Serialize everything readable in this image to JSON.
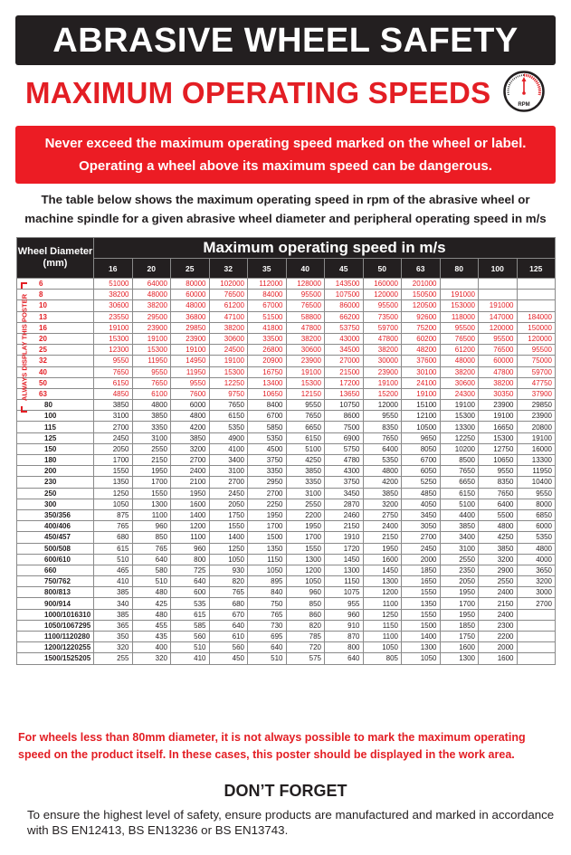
{
  "title": "ABRASIVE WHEEL SAFETY",
  "subtitle": "MAXIMUM OPERATING SPEEDS",
  "gauge_icon": {
    "name": "rpm-gauge-icon",
    "label": "RPM"
  },
  "banner": {
    "line1": "Never exceed the maximum operating speed marked on the wheel or label.",
    "line2": "Operating a wheel above its maximum speed can be dangerous."
  },
  "intro": "The table below shows the maximum operating speed in rpm of the abrasive wheel or machine spindle for a given abrasive wheel diameter and peripheral operating speed in m/s",
  "table": {
    "diameter_header": "Wheel Diameter (mm)",
    "speed_header": "Maximum operating speed in m/s",
    "speeds": [
      "16",
      "20",
      "25",
      "32",
      "35",
      "40",
      "45",
      "50",
      "63",
      "80",
      "100",
      "125"
    ],
    "side_label": "ALWAYS DISPLAY THIS POSTER",
    "colors": {
      "red_rows": "#e31e24",
      "header_bg": "#231f20"
    },
    "red_rows": [
      {
        "d": "6",
        "v": [
          "51000",
          "64000",
          "80000",
          "102000",
          "112000",
          "128000",
          "143500",
          "160000",
          "201000",
          "",
          "",
          ""
        ]
      },
      {
        "d": "8",
        "v": [
          "38200",
          "48000",
          "60000",
          "76500",
          "84000",
          "95500",
          "107500",
          "120000",
          "150500",
          "191000",
          "",
          ""
        ]
      },
      {
        "d": "10",
        "v": [
          "30600",
          "38200",
          "48000",
          "61200",
          "67000",
          "76500",
          "86000",
          "95500",
          "120500",
          "153000",
          "191000",
          ""
        ]
      },
      {
        "d": "13",
        "v": [
          "23550",
          "29500",
          "36800",
          "47100",
          "51500",
          "58800",
          "66200",
          "73500",
          "92600",
          "118000",
          "147000",
          "184000"
        ]
      },
      {
        "d": "16",
        "v": [
          "19100",
          "23900",
          "29850",
          "38200",
          "41800",
          "47800",
          "53750",
          "59700",
          "75200",
          "95500",
          "120000",
          "150000"
        ]
      },
      {
        "d": "20",
        "v": [
          "15300",
          "19100",
          "23900",
          "30600",
          "33500",
          "38200",
          "43000",
          "47800",
          "60200",
          "76500",
          "95500",
          "120000"
        ]
      },
      {
        "d": "25",
        "v": [
          "12300",
          "15300",
          "19100",
          "24500",
          "26800",
          "30600",
          "34500",
          "38200",
          "48200",
          "61200",
          "76500",
          "95500"
        ]
      },
      {
        "d": "32",
        "v": [
          "9550",
          "11950",
          "14950",
          "19100",
          "20900",
          "23900",
          "27000",
          "30000",
          "37600",
          "48000",
          "60000",
          "75000"
        ]
      },
      {
        "d": "40",
        "v": [
          "7650",
          "9550",
          "11950",
          "15300",
          "16750",
          "19100",
          "21500",
          "23900",
          "30100",
          "38200",
          "47800",
          "59700"
        ]
      },
      {
        "d": "50",
        "v": [
          "6150",
          "7650",
          "9550",
          "12250",
          "13400",
          "15300",
          "17200",
          "19100",
          "24100",
          "30600",
          "38200",
          "47750"
        ]
      },
      {
        "d": "63",
        "v": [
          "4850",
          "6100",
          "7600",
          "9750",
          "10650",
          "12150",
          "13650",
          "15200",
          "19100",
          "24300",
          "30350",
          "37900"
        ]
      }
    ],
    "rows": [
      {
        "d": "80",
        "v": [
          "3850",
          "4800",
          "6000",
          "7650",
          "8400",
          "9550",
          "10750",
          "12000",
          "15100",
          "19100",
          "23900",
          "29850"
        ]
      },
      {
        "d": "100",
        "v": [
          "3100",
          "3850",
          "4800",
          "6150",
          "6700",
          "7650",
          "8600",
          "9550",
          "12100",
          "15300",
          "19100",
          "23900"
        ]
      },
      {
        "d": "115",
        "v": [
          "2700",
          "3350",
          "4200",
          "5350",
          "5850",
          "6650",
          "7500",
          "8350",
          "10500",
          "13300",
          "16650",
          "20800"
        ]
      },
      {
        "d": "125",
        "v": [
          "2450",
          "3100",
          "3850",
          "4900",
          "5350",
          "6150",
          "6900",
          "7650",
          "9650",
          "12250",
          "15300",
          "19100"
        ]
      },
      {
        "d": "150",
        "v": [
          "2050",
          "2550",
          "3200",
          "4100",
          "4500",
          "5100",
          "5750",
          "6400",
          "8050",
          "10200",
          "12750",
          "16000"
        ]
      },
      {
        "d": "180",
        "v": [
          "1700",
          "2150",
          "2700",
          "3400",
          "3750",
          "4250",
          "4780",
          "5350",
          "6700",
          "8500",
          "10650",
          "13300"
        ]
      },
      {
        "d": "200",
        "v": [
          "1550",
          "1950",
          "2400",
          "3100",
          "3350",
          "3850",
          "4300",
          "4800",
          "6050",
          "7650",
          "9550",
          "11950"
        ]
      },
      {
        "d": "230",
        "v": [
          "1350",
          "1700",
          "2100",
          "2700",
          "2950",
          "3350",
          "3750",
          "4200",
          "5250",
          "6650",
          "8350",
          "10400"
        ]
      },
      {
        "d": "250",
        "v": [
          "1250",
          "1550",
          "1950",
          "2450",
          "2700",
          "3100",
          "3450",
          "3850",
          "4850",
          "6150",
          "7650",
          "9550"
        ]
      },
      {
        "d": "300",
        "v": [
          "1050",
          "1300",
          "1600",
          "2050",
          "2250",
          "2550",
          "2870",
          "3200",
          "4050",
          "5100",
          "6400",
          "8000"
        ]
      },
      {
        "d": "350/356",
        "v": [
          "875",
          "1100",
          "1400",
          "1750",
          "1950",
          "2200",
          "2460",
          "2750",
          "3450",
          "4400",
          "5500",
          "6850"
        ]
      },
      {
        "d": "400/406",
        "v": [
          "765",
          "960",
          "1200",
          "1550",
          "1700",
          "1950",
          "2150",
          "2400",
          "3050",
          "3850",
          "4800",
          "6000"
        ]
      },
      {
        "d": "450/457",
        "v": [
          "680",
          "850",
          "1100",
          "1400",
          "1500",
          "1700",
          "1910",
          "2150",
          "2700",
          "3400",
          "4250",
          "5350"
        ]
      },
      {
        "d": "500/508",
        "v": [
          "615",
          "765",
          "960",
          "1250",
          "1350",
          "1550",
          "1720",
          "1950",
          "2450",
          "3100",
          "3850",
          "4800"
        ]
      },
      {
        "d": "600/610",
        "v": [
          "510",
          "640",
          "800",
          "1050",
          "1150",
          "1300",
          "1450",
          "1600",
          "2000",
          "2550",
          "3200",
          "4000"
        ]
      },
      {
        "d": "660",
        "v": [
          "465",
          "580",
          "725",
          "930",
          "1050",
          "1200",
          "1300",
          "1450",
          "1850",
          "2350",
          "2900",
          "3650"
        ]
      },
      {
        "d": "750/762",
        "v": [
          "410",
          "510",
          "640",
          "820",
          "895",
          "1050",
          "1150",
          "1300",
          "1650",
          "2050",
          "2550",
          "3200"
        ]
      },
      {
        "d": "800/813",
        "v": [
          "385",
          "480",
          "600",
          "765",
          "840",
          "960",
          "1075",
          "1200",
          "1550",
          "1950",
          "2400",
          "3000"
        ]
      },
      {
        "d": "900/914",
        "v": [
          "340",
          "425",
          "535",
          "680",
          "750",
          "850",
          "955",
          "1100",
          "1350",
          "1700",
          "2150",
          "2700"
        ]
      },
      {
        "d": "1000/1016310",
        "v": [
          "385",
          "480",
          "615",
          "670",
          "765",
          "860",
          "960",
          "1250",
          "1550",
          "1950",
          "2400",
          ""
        ]
      },
      {
        "d": "1050/1067295",
        "v": [
          "365",
          "455",
          "585",
          "640",
          "730",
          "820",
          "910",
          "1150",
          "1500",
          "1850",
          "2300",
          ""
        ]
      },
      {
        "d": "1100/1120280",
        "v": [
          "350",
          "435",
          "560",
          "610",
          "695",
          "785",
          "870",
          "1100",
          "1400",
          "1750",
          "2200",
          ""
        ]
      },
      {
        "d": "1200/1220255",
        "v": [
          "320",
          "400",
          "510",
          "560",
          "640",
          "720",
          "800",
          "1050",
          "1300",
          "1600",
          "2000",
          ""
        ]
      },
      {
        "d": "1500/1525205",
        "v": [
          "255",
          "320",
          "410",
          "450",
          "510",
          "575",
          "640",
          "805",
          "1050",
          "1300",
          "1600",
          ""
        ]
      }
    ]
  },
  "note": "For wheels less than 80mm diameter, it is not always possible to mark the maximum operating speed on the product itself. In these cases, this poster should be displayed in the work area.",
  "dont_forget": "DON’T FORGET",
  "footer": "To ensure the highest level of safety, ensure products are manufactured and marked in accordance with BS EN12413, BS EN13236 or BS EN13743."
}
